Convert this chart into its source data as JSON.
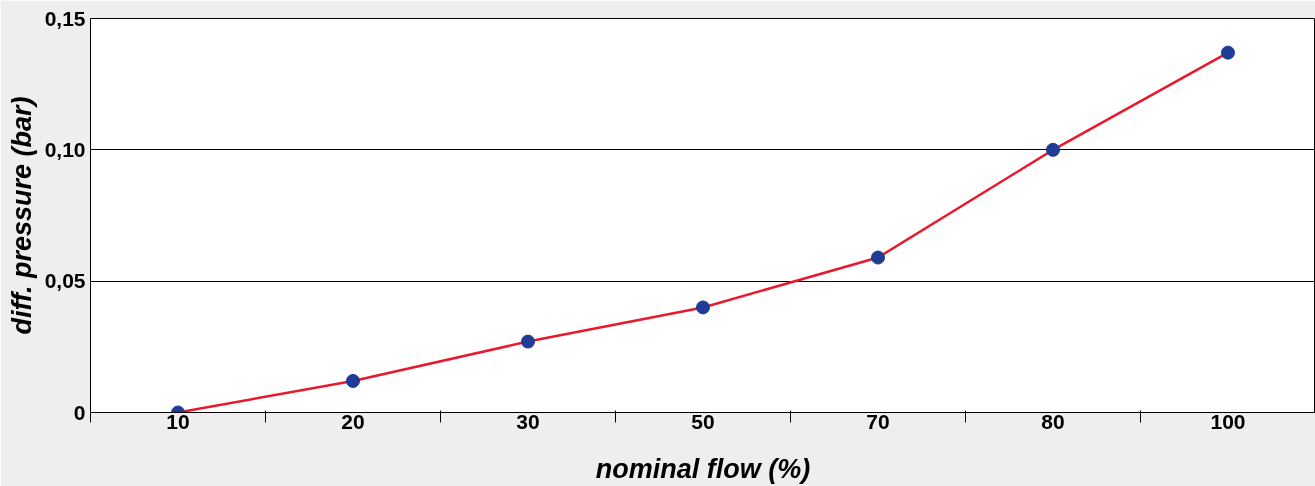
{
  "chart_data": {
    "type": "line",
    "xlabel": "nominal flow (%)",
    "ylabel": "diff. pressure (bar)",
    "categories": [
      "10",
      "20",
      "30",
      "50",
      "70",
      "80",
      "100"
    ],
    "series": [
      {
        "color": "#e8192c",
        "values": [
          0,
          0.012,
          0.027,
          0.04,
          0.059,
          0.1,
          0.137
        ]
      }
    ],
    "marker": "circle",
    "line_style": "solid",
    "ylim": [
      0,
      0.15
    ],
    "yticks": [
      0,
      {
        "value": 0.05,
        "label": "0,05"
      },
      {
        "value": 0.1,
        "label": "0,10"
      },
      {
        "value": 0.15,
        "label": "0,15"
      }
    ],
    "grid": "y"
  }
}
